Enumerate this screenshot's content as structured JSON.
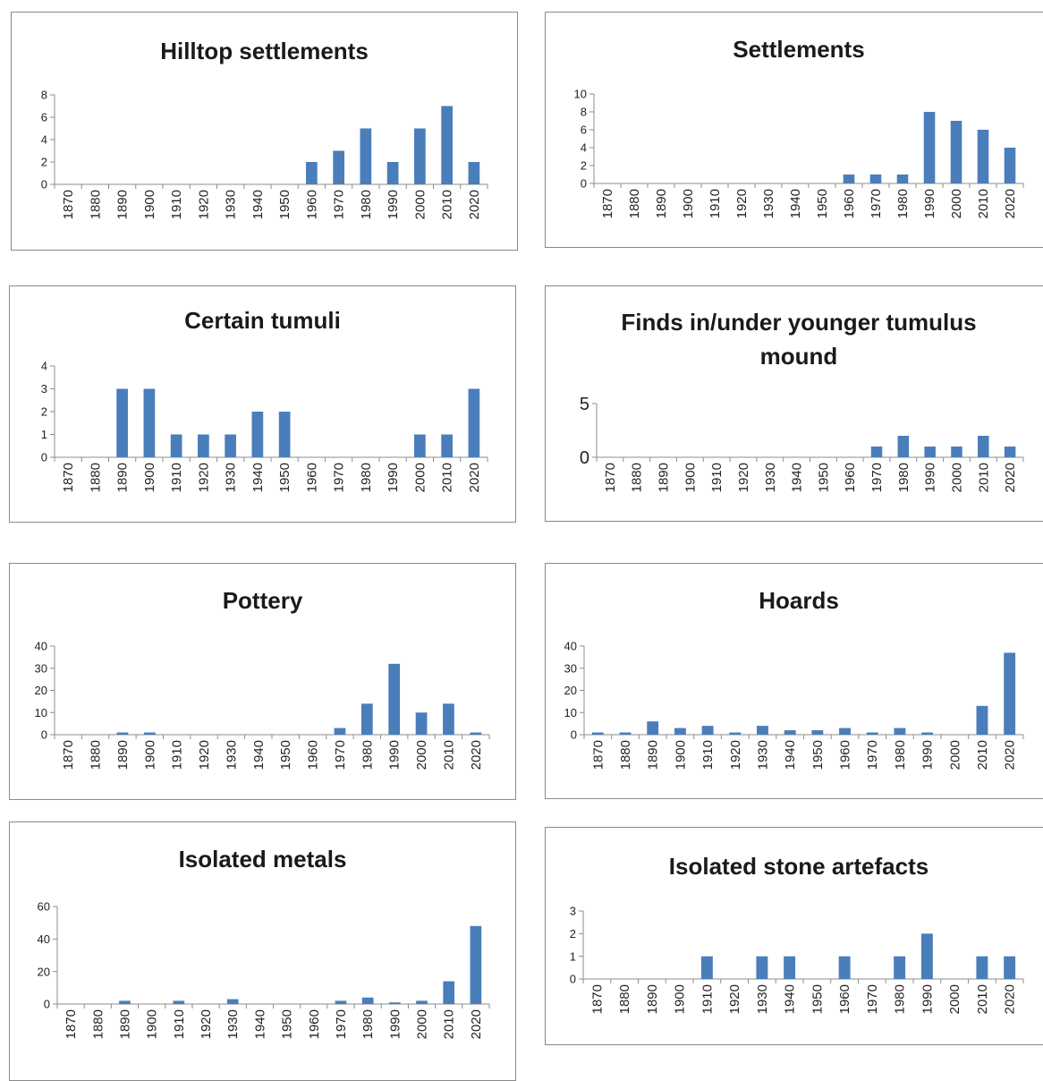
{
  "chart_data": [
    {
      "type": "bar",
      "title": "Hilltop settlements",
      "categories": [
        "1870",
        "1880",
        "1890",
        "1900",
        "1910",
        "1920",
        "1930",
        "1940",
        "1950",
        "1960",
        "1970",
        "1980",
        "1990",
        "2000",
        "2010",
        "2020"
      ],
      "values": [
        0,
        0,
        0,
        0,
        0,
        0,
        0,
        0,
        0,
        2,
        3,
        5,
        2,
        5,
        7,
        2
      ],
      "ylim": [
        0,
        8
      ],
      "yticks": [
        0,
        2,
        4,
        6,
        8
      ],
      "xlabel": "",
      "ylabel": "",
      "grid": false,
      "legend": "none"
    },
    {
      "type": "bar",
      "title": "Settlements",
      "categories": [
        "1870",
        "1880",
        "1890",
        "1900",
        "1910",
        "1920",
        "1930",
        "1940",
        "1950",
        "1960",
        "1970",
        "1980",
        "1990",
        "2000",
        "2010",
        "2020"
      ],
      "values": [
        0,
        0,
        0,
        0,
        0,
        0,
        0,
        0,
        0,
        1,
        1,
        1,
        8,
        7,
        6,
        4
      ],
      "ylim": [
        0,
        10
      ],
      "yticks": [
        0,
        2,
        4,
        6,
        8,
        10
      ],
      "xlabel": "",
      "ylabel": "",
      "grid": false,
      "legend": "none"
    },
    {
      "type": "bar",
      "title": "Certain tumuli",
      "categories": [
        "1870",
        "1880",
        "1890",
        "1900",
        "1910",
        "1920",
        "1930",
        "1940",
        "1950",
        "1960",
        "1970",
        "1980",
        "1990",
        "2000",
        "2010",
        "2020"
      ],
      "values": [
        0,
        0,
        3,
        3,
        1,
        1,
        1,
        2,
        2,
        0,
        0,
        0,
        0,
        1,
        1,
        3
      ],
      "ylim": [
        0,
        4
      ],
      "yticks": [
        0,
        1,
        2,
        3,
        4
      ],
      "xlabel": "",
      "ylabel": "",
      "grid": false,
      "legend": "none"
    },
    {
      "type": "bar",
      "title": "Finds in/under younger tumulus mound",
      "title_lines": [
        "Finds in/under younger tumulus",
        "mound"
      ],
      "categories": [
        "1870",
        "1880",
        "1890",
        "1900",
        "1910",
        "1920",
        "1930",
        "1940",
        "1950",
        "1960",
        "1970",
        "1980",
        "1990",
        "2000",
        "2010",
        "2020"
      ],
      "values": [
        0,
        0,
        0,
        0,
        0,
        0,
        0,
        0,
        0,
        0,
        1,
        2,
        1,
        1,
        2,
        1
      ],
      "ylim": [
        0,
        5
      ],
      "yticks": [
        0,
        5
      ],
      "xlabel": "",
      "ylabel": "",
      "grid": false,
      "legend": "none"
    },
    {
      "type": "bar",
      "title": "Pottery",
      "categories": [
        "1870",
        "1880",
        "1890",
        "1900",
        "1910",
        "1920",
        "1930",
        "1940",
        "1950",
        "1960",
        "1970",
        "1980",
        "1990",
        "2000",
        "2010",
        "2020"
      ],
      "values": [
        0,
        0,
        1,
        1,
        0,
        0,
        0,
        0,
        0,
        0,
        3,
        14,
        32,
        10,
        14,
        1
      ],
      "ylim": [
        0,
        40
      ],
      "yticks": [
        0,
        10,
        20,
        30,
        40
      ],
      "xlabel": "",
      "ylabel": "",
      "grid": false,
      "legend": "none"
    },
    {
      "type": "bar",
      "title": "Hoards",
      "categories": [
        "1870",
        "1880",
        "1890",
        "1900",
        "1910",
        "1920",
        "1930",
        "1940",
        "1950",
        "1960",
        "1970",
        "1980",
        "1990",
        "2000",
        "2010",
        "2020"
      ],
      "values": [
        1,
        1,
        6,
        3,
        4,
        1,
        4,
        2,
        2,
        3,
        1,
        3,
        1,
        0,
        13,
        37
      ],
      "ylim": [
        0,
        40
      ],
      "yticks": [
        0,
        10,
        20,
        30,
        40
      ],
      "xlabel": "",
      "ylabel": "",
      "grid": false,
      "legend": "none"
    },
    {
      "type": "bar",
      "title": "Isolated metals",
      "categories": [
        "1870",
        "1880",
        "1890",
        "1900",
        "1910",
        "1920",
        "1930",
        "1940",
        "1950",
        "1960",
        "1970",
        "1980",
        "1990",
        "2000",
        "2010",
        "2020"
      ],
      "values": [
        0,
        0,
        2,
        0,
        2,
        0,
        3,
        0,
        0,
        0,
        2,
        4,
        1,
        2,
        14,
        48
      ],
      "ylim": [
        0,
        60
      ],
      "yticks": [
        0,
        20,
        40,
        60
      ],
      "xlabel": "",
      "ylabel": "",
      "grid": false,
      "legend": "none"
    },
    {
      "type": "bar",
      "title": "Isolated stone artefacts",
      "categories": [
        "1870",
        "1880",
        "1890",
        "1900",
        "1910",
        "1920",
        "1930",
        "1940",
        "1950",
        "1960",
        "1970",
        "1980",
        "1990",
        "2000",
        "2010",
        "2020"
      ],
      "values": [
        0,
        0,
        0,
        0,
        1,
        0,
        1,
        1,
        0,
        1,
        0,
        1,
        2,
        0,
        1,
        1
      ],
      "ylim": [
        0,
        3
      ],
      "yticks": [
        0,
        1,
        2,
        3
      ],
      "xlabel": "",
      "ylabel": "",
      "grid": false,
      "legend": "none"
    }
  ],
  "colors": {
    "bar": "#4a7ebb",
    "axis": "#8c8c8c",
    "border": "#8a8a8a"
  }
}
